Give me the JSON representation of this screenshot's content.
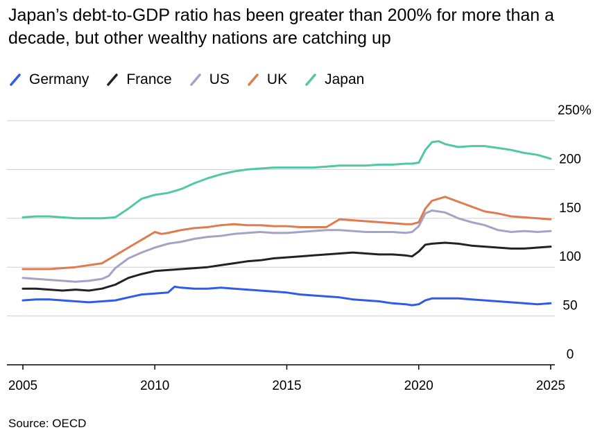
{
  "title": "Japan’s debt-to-GDP ratio has been greater than 200% for more than a decade, but other wealthy nations are catching up",
  "source": "Source: OECD",
  "chart_data": {
    "type": "line",
    "title": "Japan’s debt-to-GDP ratio has been greater than 200% for more than a decade, but other wealthy nations are catching up",
    "xlabel": "",
    "ylabel": "",
    "xlim": [
      2005,
      2025
    ],
    "ylim": [
      0,
      250
    ],
    "x_ticks": [
      "2005",
      "2010",
      "2015",
      "2020",
      "2025"
    ],
    "y_ticks": [
      "0",
      "50",
      "100",
      "150",
      "200",
      "250%"
    ],
    "y_tick_values": [
      0,
      50,
      100,
      150,
      200,
      250
    ],
    "grid": true,
    "legend_position": "top-left",
    "series": [
      {
        "name": "Germany",
        "color": "#2f5be8",
        "x": [
          2005,
          2005.5,
          2006,
          2006.5,
          2007,
          2007.5,
          2008,
          2008.5,
          2009,
          2009.5,
          2010,
          2010.5,
          2010.75,
          2011,
          2011.5,
          2012,
          2012.5,
          2013,
          2013.5,
          2014,
          2014.5,
          2015,
          2015.5,
          2016,
          2016.5,
          2017,
          2017.5,
          2018,
          2018.5,
          2019,
          2019.5,
          2019.75,
          2020,
          2020.25,
          2020.5,
          2021,
          2021.5,
          2022,
          2022.5,
          2023,
          2023.5,
          2024,
          2024.5,
          2025
        ],
        "values": [
          66,
          67,
          67,
          66,
          65,
          64,
          65,
          66,
          69,
          72,
          73,
          74,
          80,
          79,
          78,
          78,
          79,
          78,
          77,
          76,
          75,
          74,
          72,
          71,
          70,
          69,
          67,
          66,
          65,
          63,
          62,
          61,
          62,
          66,
          68,
          68,
          68,
          67,
          66,
          65,
          64,
          63,
          62,
          63
        ]
      },
      {
        "name": "France",
        "color": "#222222",
        "x": [
          2005,
          2005.5,
          2006,
          2006.5,
          2007,
          2007.5,
          2008,
          2008.5,
          2009,
          2009.5,
          2010,
          2010.5,
          2011,
          2011.5,
          2012,
          2012.5,
          2013,
          2013.5,
          2014,
          2014.5,
          2015,
          2015.5,
          2016,
          2016.5,
          2017,
          2017.5,
          2018,
          2018.5,
          2019,
          2019.5,
          2019.75,
          2020,
          2020.25,
          2020.5,
          2021,
          2021.5,
          2022,
          2022.5,
          2023,
          2023.5,
          2024,
          2024.5,
          2025
        ],
        "values": [
          78,
          78,
          77,
          76,
          77,
          76,
          78,
          82,
          89,
          93,
          96,
          97,
          98,
          99,
          100,
          102,
          104,
          106,
          107,
          109,
          110,
          111,
          112,
          113,
          114,
          115,
          114,
          113,
          113,
          112,
          111,
          116,
          123,
          124,
          125,
          124,
          122,
          121,
          120,
          119,
          119,
          120,
          121
        ]
      },
      {
        "name": "US",
        "color": "#a3a3c4",
        "x": [
          2005,
          2005.5,
          2006,
          2006.5,
          2007,
          2007.5,
          2008,
          2008.25,
          2008.5,
          2009,
          2009.5,
          2010,
          2010.5,
          2011,
          2011.5,
          2012,
          2012.5,
          2013,
          2013.5,
          2014,
          2014.5,
          2015,
          2015.5,
          2016,
          2016.5,
          2017,
          2017.5,
          2018,
          2018.5,
          2019,
          2019.5,
          2019.75,
          2020,
          2020.25,
          2020.5,
          2021,
          2021.5,
          2022,
          2022.5,
          2023,
          2023.5,
          2024,
          2024.5,
          2025
        ],
        "values": [
          89,
          88,
          87,
          86,
          85,
          86,
          88,
          91,
          99,
          109,
          115,
          120,
          124,
          126,
          129,
          131,
          132,
          134,
          135,
          136,
          135,
          135,
          136,
          137,
          138,
          138,
          137,
          136,
          136,
          136,
          135,
          136,
          142,
          155,
          158,
          156,
          150,
          146,
          143,
          138,
          136,
          137,
          136,
          137
        ]
      },
      {
        "name": "UK",
        "color": "#e07b4f",
        "x": [
          2005,
          2005.5,
          2006,
          2006.5,
          2007,
          2007.5,
          2008,
          2008.5,
          2009,
          2009.5,
          2010,
          2010.25,
          2010.5,
          2011,
          2011.5,
          2012,
          2012.5,
          2013,
          2013.5,
          2014,
          2014.5,
          2015,
          2015.5,
          2016,
          2016.5,
          2017,
          2017.5,
          2018,
          2018.5,
          2019,
          2019.5,
          2019.75,
          2020,
          2020.25,
          2020.5,
          2021,
          2021.5,
          2022,
          2022.5,
          2023,
          2023.5,
          2024,
          2024.5,
          2025
        ],
        "values": [
          98,
          98,
          98,
          99,
          100,
          102,
          104,
          112,
          120,
          128,
          136,
          134,
          135,
          138,
          140,
          141,
          143,
          144,
          143,
          143,
          142,
          142,
          141,
          141,
          141,
          149,
          148,
          147,
          146,
          145,
          144,
          144,
          146,
          160,
          168,
          172,
          167,
          162,
          157,
          155,
          152,
          151,
          150,
          149
        ]
      },
      {
        "name": "Japan",
        "color": "#4fc9a4",
        "x": [
          2005,
          2005.5,
          2006,
          2006.5,
          2007,
          2007.5,
          2008,
          2008.5,
          2009,
          2009.5,
          2010,
          2010.5,
          2011,
          2011.5,
          2012,
          2012.5,
          2013,
          2013.5,
          2014,
          2014.5,
          2015,
          2015.5,
          2016,
          2016.5,
          2017,
          2017.5,
          2018,
          2018.5,
          2019,
          2019.5,
          2019.75,
          2020,
          2020.25,
          2020.5,
          2020.75,
          2021,
          2021.5,
          2022,
          2022.5,
          2023,
          2023.5,
          2024,
          2024.5,
          2025
        ],
        "values": [
          151,
          152,
          152,
          151,
          150,
          150,
          150,
          151,
          160,
          170,
          174,
          176,
          180,
          186,
          191,
          195,
          198,
          200,
          201,
          202,
          202,
          202,
          202,
          203,
          204,
          204,
          204,
          205,
          205,
          206,
          206,
          207,
          220,
          228,
          229,
          226,
          223,
          224,
          224,
          222,
          220,
          217,
          215,
          211
        ]
      }
    ]
  }
}
